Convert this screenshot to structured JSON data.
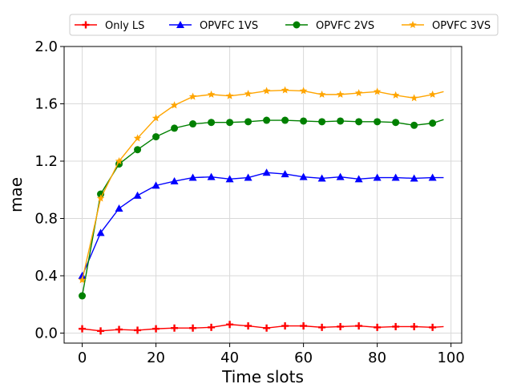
{
  "chart_data": {
    "type": "line",
    "title": "",
    "xlabel": "Time slots",
    "ylabel": "mae",
    "xlim": [
      -4.9,
      102.9
    ],
    "ylim": [
      -0.07,
      2.0
    ],
    "xticks": [
      0,
      20,
      40,
      60,
      80,
      100
    ],
    "yticks": [
      0.0,
      0.4,
      0.8,
      1.2,
      1.6,
      2.0
    ],
    "xtick_labels": [
      "0",
      "20",
      "40",
      "60",
      "80",
      "100"
    ],
    "ytick_labels": [
      "0.0",
      "0.4",
      "0.8",
      "1.2",
      "1.6",
      "2.0"
    ],
    "grid": true,
    "legend_position": "top",
    "series": [
      {
        "name": "Only LS",
        "color": "#ff0000",
        "marker": "plus",
        "x": [
          0,
          5,
          10,
          15,
          20,
          25,
          30,
          35,
          40,
          45,
          50,
          55,
          60,
          65,
          70,
          75,
          80,
          85,
          90,
          95,
          98
        ],
        "y": [
          0.03,
          0.015,
          0.025,
          0.02,
          0.03,
          0.035,
          0.035,
          0.04,
          0.06,
          0.05,
          0.035,
          0.05,
          0.05,
          0.04,
          0.045,
          0.05,
          0.04,
          0.045,
          0.045,
          0.04,
          0.045
        ]
      },
      {
        "name": "OPVFC 1VS",
        "color": "#0000ff",
        "marker": "triangle",
        "x": [
          0,
          5,
          10,
          15,
          20,
          25,
          30,
          35,
          40,
          45,
          50,
          55,
          60,
          65,
          70,
          75,
          80,
          85,
          90,
          95,
          98
        ],
        "y": [
          0.4,
          0.7,
          0.87,
          0.96,
          1.03,
          1.06,
          1.085,
          1.09,
          1.075,
          1.085,
          1.12,
          1.11,
          1.09,
          1.08,
          1.09,
          1.075,
          1.085,
          1.085,
          1.08,
          1.085,
          1.085
        ]
      },
      {
        "name": "OPVFC 2VS",
        "color": "#008000",
        "marker": "circle",
        "x": [
          0,
          5,
          10,
          15,
          20,
          25,
          30,
          35,
          40,
          45,
          50,
          55,
          60,
          65,
          70,
          75,
          80,
          85,
          90,
          95,
          98
        ],
        "y": [
          0.26,
          0.97,
          1.18,
          1.28,
          1.37,
          1.43,
          1.46,
          1.47,
          1.47,
          1.475,
          1.485,
          1.485,
          1.48,
          1.475,
          1.48,
          1.475,
          1.475,
          1.47,
          1.45,
          1.465,
          1.49
        ]
      },
      {
        "name": "OPVFC 3VS",
        "color": "#ffa500",
        "marker": "star",
        "x": [
          0,
          5,
          10,
          15,
          20,
          25,
          30,
          35,
          40,
          45,
          50,
          55,
          60,
          65,
          70,
          75,
          80,
          85,
          90,
          95,
          98
        ],
        "y": [
          0.37,
          0.94,
          1.2,
          1.36,
          1.5,
          1.59,
          1.65,
          1.665,
          1.655,
          1.67,
          1.69,
          1.695,
          1.69,
          1.665,
          1.665,
          1.675,
          1.685,
          1.66,
          1.64,
          1.665,
          1.685
        ]
      }
    ]
  }
}
